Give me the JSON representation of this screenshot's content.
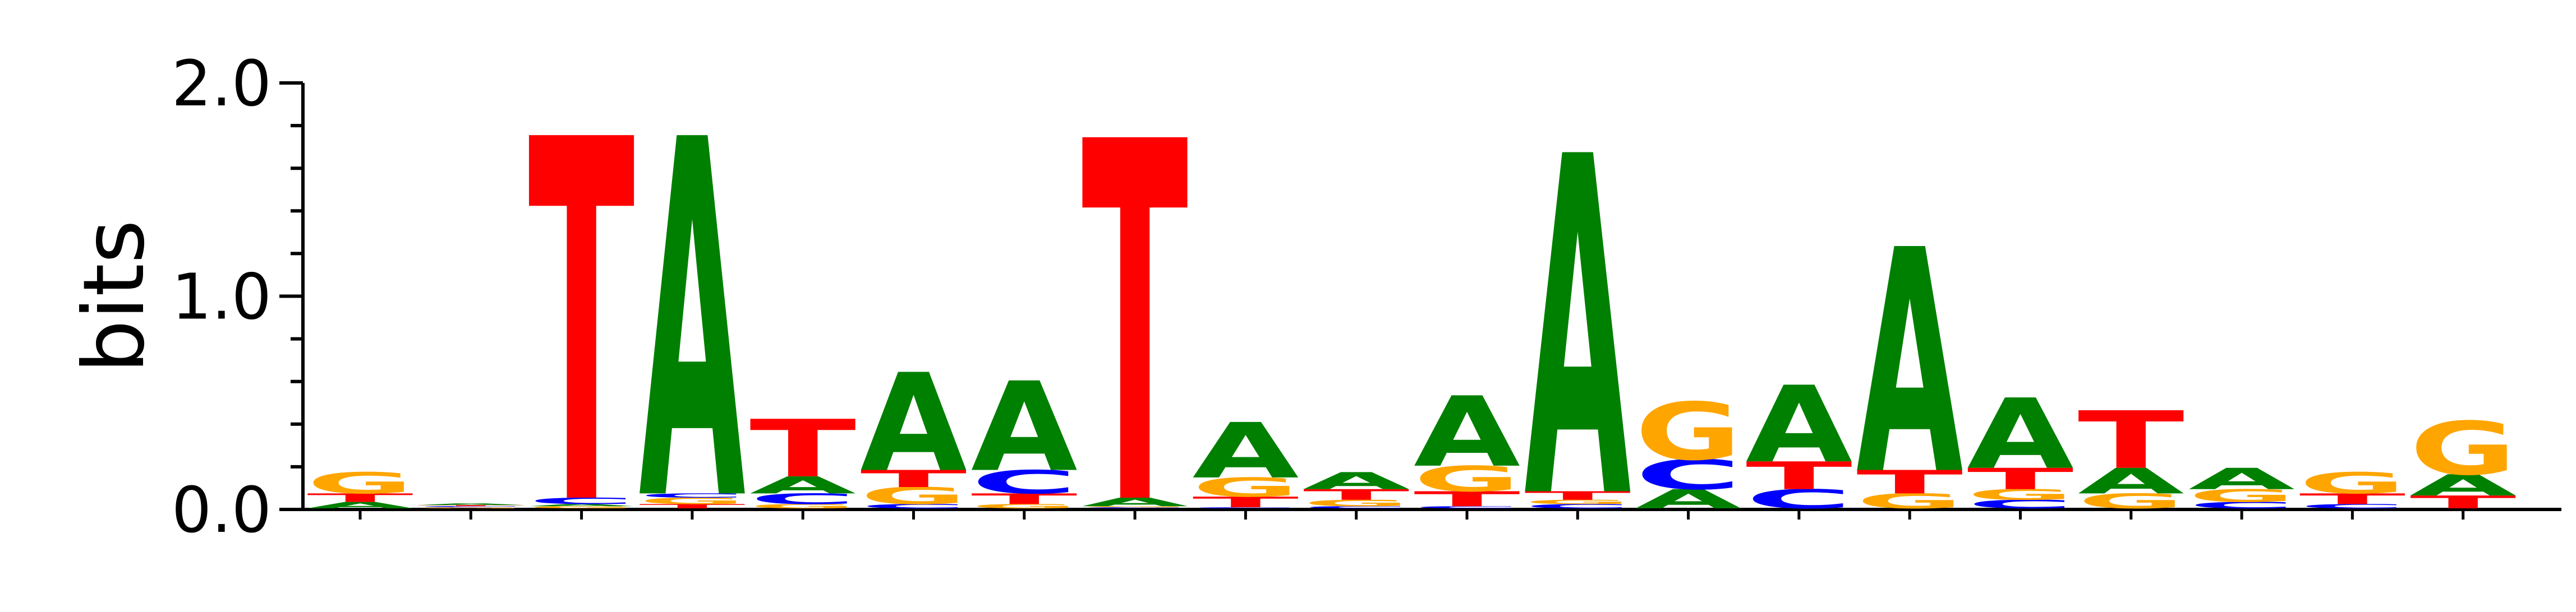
{
  "chart_data": {
    "type": "sequence-logo",
    "title": "",
    "xlabel": "",
    "ylabel": "bits",
    "ylim": [
      0,
      2
    ],
    "y_ticks": [
      {
        "value": 0,
        "label": "0.0"
      },
      {
        "value": 1,
        "label": "1.0"
      },
      {
        "value": 2,
        "label": "2.0"
      }
    ],
    "y_minor_step": 0.2,
    "alphabet_colors": {
      "A": "#008000",
      "C": "#0000ff",
      "G": "#ffa500",
      "T": "#ff0000"
    },
    "positions": [
      [
        {
          "letter": "A",
          "bits": 0.03
        },
        {
          "letter": "T",
          "bits": 0.04
        },
        {
          "letter": "G",
          "bits": 0.1
        }
      ],
      [
        {
          "letter": "G",
          "bits": 0.005
        },
        {
          "letter": "C",
          "bits": 0.005
        },
        {
          "letter": "T",
          "bits": 0.005
        },
        {
          "letter": "A",
          "bits": 0.008
        }
      ],
      [
        {
          "letter": "G",
          "bits": 0.01
        },
        {
          "letter": "A",
          "bits": 0.01
        },
        {
          "letter": "C",
          "bits": 0.03
        },
        {
          "letter": "T",
          "bits": 1.7
        }
      ],
      [
        {
          "letter": "T",
          "bits": 0.02
        },
        {
          "letter": "G",
          "bits": 0.03
        },
        {
          "letter": "C",
          "bits": 0.02
        },
        {
          "letter": "A",
          "bits": 1.68
        }
      ],
      [
        {
          "letter": "G",
          "bits": 0.02
        },
        {
          "letter": "C",
          "bits": 0.05
        },
        {
          "letter": "A",
          "bits": 0.08
        },
        {
          "letter": "T",
          "bits": 0.27
        }
      ],
      [
        {
          "letter": "C",
          "bits": 0.02
        },
        {
          "letter": "G",
          "bits": 0.08
        },
        {
          "letter": "T",
          "bits": 0.08
        },
        {
          "letter": "A",
          "bits": 0.46
        }
      ],
      [
        {
          "letter": "G",
          "bits": 0.02
        },
        {
          "letter": "T",
          "bits": 0.05
        },
        {
          "letter": "C",
          "bits": 0.11
        },
        {
          "letter": "A",
          "bits": 0.42
        }
      ],
      [
        {
          "letter": "C",
          "bits": 0.005
        },
        {
          "letter": "G",
          "bits": 0.005
        },
        {
          "letter": "A",
          "bits": 0.04
        },
        {
          "letter": "T",
          "bits": 1.69
        }
      ],
      [
        {
          "letter": "C",
          "bits": 0.005
        },
        {
          "letter": "T",
          "bits": 0.05
        },
        {
          "letter": "G",
          "bits": 0.09
        },
        {
          "letter": "A",
          "bits": 0.26
        }
      ],
      [
        {
          "letter": "C",
          "bits": 0.01
        },
        {
          "letter": "G",
          "bits": 0.03
        },
        {
          "letter": "T",
          "bits": 0.05
        },
        {
          "letter": "A",
          "bits": 0.08
        }
      ],
      [
        {
          "letter": "C",
          "bits": 0.01
        },
        {
          "letter": "T",
          "bits": 0.07
        },
        {
          "letter": "G",
          "bits": 0.12
        },
        {
          "letter": "A",
          "bits": 0.33
        }
      ],
      [
        {
          "letter": "C",
          "bits": 0.02
        },
        {
          "letter": "G",
          "bits": 0.02
        },
        {
          "letter": "T",
          "bits": 0.04
        },
        {
          "letter": "A",
          "bits": 1.59
        }
      ],
      [
        {
          "letter": "A",
          "bits": 0.09
        },
        {
          "letter": "C",
          "bits": 0.14
        },
        {
          "letter": "G",
          "bits": 0.27
        }
      ],
      [
        {
          "letter": "C",
          "bits": 0.09
        },
        {
          "letter": "T",
          "bits": 0.13
        },
        {
          "letter": "A",
          "bits": 0.36
        }
      ],
      [
        {
          "letter": "G",
          "bits": 0.07
        },
        {
          "letter": "T",
          "bits": 0.11
        },
        {
          "letter": "A",
          "bits": 1.05
        }
      ],
      [
        {
          "letter": "C",
          "bits": 0.04
        },
        {
          "letter": "G",
          "bits": 0.05
        },
        {
          "letter": "T",
          "bits": 0.1
        },
        {
          "letter": "A",
          "bits": 0.33
        }
      ],
      [
        {
          "letter": "G",
          "bits": 0.07
        },
        {
          "letter": "A",
          "bits": 0.12
        },
        {
          "letter": "T",
          "bits": 0.27
        }
      ],
      [
        {
          "letter": "C",
          "bits": 0.03
        },
        {
          "letter": "G",
          "bits": 0.06
        },
        {
          "letter": "A",
          "bits": 0.1
        }
      ],
      [
        {
          "letter": "C",
          "bits": 0.02
        },
        {
          "letter": "T",
          "bits": 0.05
        },
        {
          "letter": "G",
          "bits": 0.1
        }
      ],
      [
        {
          "letter": "T",
          "bits": 0.06
        },
        {
          "letter": "A",
          "bits": 0.1
        },
        {
          "letter": "G",
          "bits": 0.25
        }
      ]
    ]
  }
}
